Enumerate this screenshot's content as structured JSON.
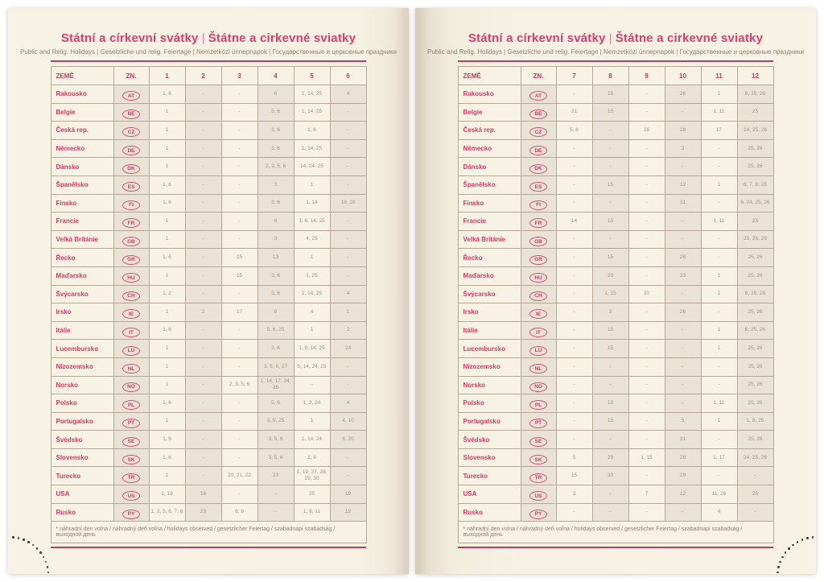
{
  "common": {
    "title_cz": "Státní a církevní svátky",
    "title_separator": "|",
    "title_sk": "Štátne a cirkevné sviatky",
    "subtitle": "Public and Relig. Holidays | Gesetzliche und relig. Feiertage | Nemzetközi ünnepnapok | Государственные и церковные праздники",
    "col_country": "ZEMĚ",
    "col_code": "ZN.",
    "footnote": "* náhradní den volna / náhradný deň voľna / holidays observed / gesetzlicher Feiertag / szabadnapi szabadság / выходной день"
  },
  "colors": {
    "accent_pink": "#d5406f",
    "rule_red": "#c23a60",
    "page_cream": "#f8f2e5",
    "column_light": "#f8f2e4",
    "column_dark": "#ebe2d6",
    "cell_text": "#9b9184",
    "table_border": "#b5a897"
  },
  "pages": [
    {
      "side": "left",
      "month_columns": [
        "1",
        "2",
        "3",
        "4",
        "5",
        "6"
      ],
      "rows": [
        {
          "country": "Rakousko",
          "code": "AT",
          "values": [
            "1, 6",
            "-",
            "-",
            "6",
            "1, 14, 25",
            "4"
          ]
        },
        {
          "country": "Belgie",
          "code": "BE",
          "values": [
            "1",
            "-",
            "-",
            "3, 6",
            "1, 14, 25",
            "-"
          ]
        },
        {
          "country": "Česká rep.",
          "code": "CZ",
          "values": [
            "1",
            "-",
            "-",
            "3, 6",
            "1, 8",
            "-"
          ]
        },
        {
          "country": "Německo",
          "code": "DE",
          "values": [
            "1",
            "-",
            "-",
            "3, 6",
            "1, 14, 25",
            "-"
          ]
        },
        {
          "country": "Dánsko",
          "code": "DK",
          "values": [
            "1",
            "-",
            "-",
            "2, 3, 5, 6",
            "14, 24, 25",
            "-"
          ]
        },
        {
          "country": "Španělsko",
          "code": "ES",
          "values": [
            "1, 6",
            "-",
            "-",
            "3",
            "1",
            "-"
          ]
        },
        {
          "country": "Finsko",
          "code": "FI",
          "values": [
            "1, 6",
            "-",
            "-",
            "3, 6",
            "1, 14",
            "19, 20"
          ]
        },
        {
          "country": "Francie",
          "code": "FR",
          "values": [
            "1",
            "-",
            "-",
            "6",
            "1, 8, 14, 25",
            "-"
          ]
        },
        {
          "country": "Velká Británie",
          "code": "GB",
          "values": [
            "1",
            "-",
            "-",
            "3",
            "4, 25",
            "-"
          ]
        },
        {
          "country": "Řecko",
          "code": "GR",
          "values": [
            "1, 6",
            "-",
            "25",
            "13",
            "1",
            "-"
          ]
        },
        {
          "country": "Maďarsko",
          "code": "HU",
          "values": [
            "1",
            "-",
            "15",
            "3, 6",
            "1, 25",
            "-"
          ]
        },
        {
          "country": "Švýcarsko",
          "code": "CH",
          "values": [
            "1, 2",
            "-",
            "-",
            "3, 6",
            "1, 14, 25",
            "4"
          ]
        },
        {
          "country": "Irsko",
          "code": "IE",
          "values": [
            "1",
            "2",
            "17",
            "6",
            "4",
            "1"
          ]
        },
        {
          "country": "Itálie",
          "code": "IT",
          "values": [
            "1, 6",
            "-",
            "-",
            "5, 6, 25",
            "1",
            "2"
          ]
        },
        {
          "country": "Lucembursko",
          "code": "LU",
          "values": [
            "1",
            "-",
            "-",
            "3, 6",
            "1, 9, 14, 25",
            "23"
          ]
        },
        {
          "country": "Nizozemsko",
          "code": "NL",
          "values": [
            "1",
            "-",
            "-",
            "3, 5, 6, 27",
            "5, 14, 24, 25",
            "-"
          ]
        },
        {
          "country": "Norsko",
          "code": "NO",
          "values": [
            "1",
            "-",
            "2, 3, 5, 6",
            "1, 14, 17, 24, 25",
            "-",
            "-"
          ]
        },
        {
          "country": "Polsko",
          "code": "PL",
          "values": [
            "1, 6",
            "-",
            "-",
            "5, 6",
            "1, 3, 24",
            "4"
          ]
        },
        {
          "country": "Portugalsko",
          "code": "PT",
          "values": [
            "1",
            "-",
            "-",
            "3, 5, 25",
            "1",
            "4, 10"
          ]
        },
        {
          "country": "Švédsko",
          "code": "SE",
          "values": [
            "1, 6",
            "-",
            "-",
            "3, 5, 6",
            "1, 14, 24",
            "6, 20"
          ]
        },
        {
          "country": "Slovensko",
          "code": "SK",
          "values": [
            "1, 6",
            "-",
            "-",
            "3, 5, 6",
            "1, 8",
            "-"
          ]
        },
        {
          "country": "Turecko",
          "code": "TR",
          "values": [
            "1",
            "-",
            "20, 21, 22",
            "23",
            "1, 19, 27, 28, 29, 30",
            "-"
          ]
        },
        {
          "country": "USA",
          "code": "US",
          "values": [
            "1, 19",
            "16",
            "-",
            "-",
            "25",
            "19"
          ]
        },
        {
          "country": "Rusko",
          "code": "PY",
          "values": [
            "1, 2, 5, 6, 7, 8",
            "23",
            "8, 9",
            "-",
            "1, 9, 11",
            "12"
          ]
        }
      ]
    },
    {
      "side": "right",
      "month_columns": [
        "7",
        "8",
        "9",
        "10",
        "11",
        "12"
      ],
      "rows": [
        {
          "country": "Rakousko",
          "code": "AT",
          "values": [
            "-",
            "15",
            "-",
            "26",
            "1",
            "8, 25, 26"
          ]
        },
        {
          "country": "Belgie",
          "code": "BE",
          "values": [
            "21",
            "15",
            "-",
            "-",
            "1, 11",
            "25"
          ]
        },
        {
          "country": "Česká rep.",
          "code": "CZ",
          "values": [
            "5, 6",
            "-",
            "28",
            "28",
            "17",
            "24, 25, 26"
          ]
        },
        {
          "country": "Německo",
          "code": "DE",
          "values": [
            "-",
            "-",
            "-",
            "3",
            "-",
            "25, 26"
          ]
        },
        {
          "country": "Dánsko",
          "code": "DK",
          "values": [
            "-",
            "-",
            "-",
            "-",
            "-",
            "25, 26"
          ]
        },
        {
          "country": "Španělsko",
          "code": "ES",
          "values": [
            "-",
            "15",
            "-",
            "12",
            "1",
            "6, 7, 8, 25"
          ]
        },
        {
          "country": "Finsko",
          "code": "FI",
          "values": [
            "-",
            "-",
            "-",
            "31",
            "-",
            "6, 24, 25, 26"
          ]
        },
        {
          "country": "Francie",
          "code": "FR",
          "values": [
            "14",
            "15",
            "-",
            "-",
            "1, 11",
            "25"
          ]
        },
        {
          "country": "Velká Británie",
          "code": "GB",
          "values": [
            "-",
            "-",
            "-",
            "-",
            "-",
            "25, 26, 28"
          ]
        },
        {
          "country": "Řecko",
          "code": "GR",
          "values": [
            "-",
            "15",
            "-",
            "28",
            "-",
            "25, 26"
          ]
        },
        {
          "country": "Maďarsko",
          "code": "HU",
          "values": [
            "-",
            "20",
            "-",
            "23",
            "1",
            "25, 26"
          ]
        },
        {
          "country": "Švýcarsko",
          "code": "CH",
          "values": [
            "-",
            "1, 15",
            "20",
            "-",
            "1",
            "8, 25, 26"
          ]
        },
        {
          "country": "Irsko",
          "code": "IE",
          "values": [
            "-",
            "3",
            "-",
            "26",
            "-",
            "25, 26"
          ]
        },
        {
          "country": "Itálie",
          "code": "IT",
          "values": [
            "-",
            "15",
            "-",
            "-",
            "1",
            "8, 25, 26"
          ]
        },
        {
          "country": "Lucembursko",
          "code": "LU",
          "values": [
            "-",
            "15",
            "-",
            "-",
            "1",
            "25, 26"
          ]
        },
        {
          "country": "Nizozemsko",
          "code": "NL",
          "values": [
            "-",
            "-",
            "-",
            "-",
            "-",
            "25, 26"
          ]
        },
        {
          "country": "Norsko",
          "code": "NO",
          "values": [
            "-",
            "-",
            "-",
            "-",
            "-",
            "25, 26"
          ]
        },
        {
          "country": "Polsko",
          "code": "PL",
          "values": [
            "-",
            "15",
            "-",
            "-",
            "1, 11",
            "25, 26"
          ]
        },
        {
          "country": "Portugalsko",
          "code": "PT",
          "values": [
            "-",
            "15",
            "-",
            "5",
            "1",
            "1, 8, 25"
          ]
        },
        {
          "country": "Švédsko",
          "code": "SE",
          "values": [
            "-",
            "-",
            "-",
            "31",
            "-",
            "25, 26"
          ]
        },
        {
          "country": "Slovensko",
          "code": "SK",
          "values": [
            "5",
            "29",
            "1, 15",
            "28",
            "1, 17",
            "24, 25, 26"
          ]
        },
        {
          "country": "Turecko",
          "code": "TR",
          "values": [
            "15",
            "30",
            "-",
            "29",
            "-",
            "-"
          ]
        },
        {
          "country": "USA",
          "code": "US",
          "values": [
            "3",
            "-",
            "7",
            "12",
            "11, 26",
            "25"
          ]
        },
        {
          "country": "Rusko",
          "code": "PY",
          "values": [
            "-",
            "-",
            "-",
            "-",
            "4",
            "-"
          ]
        }
      ]
    }
  ]
}
